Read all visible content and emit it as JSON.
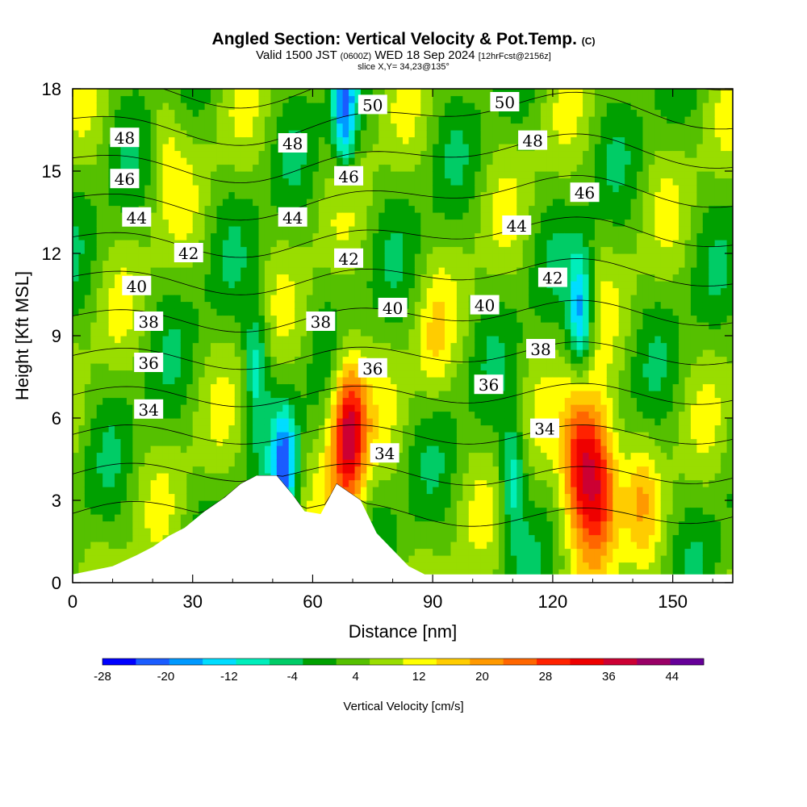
{
  "title": {
    "main": "Angled Section: Vertical Velocity & Pot.Temp.",
    "main_unit": "(C)",
    "valid_prefix": "Valid 1500 JST",
    "valid_utc": "(0600Z)",
    "valid_date": "WED 18 Sep 2024",
    "forecast": "[12hrFcst@2156z]",
    "slice": "slice X,Y= 34,23@135°"
  },
  "chart_data": {
    "type": "heatmap",
    "xlabel": "Distance [nm]",
    "ylabel": "Height [Kft MSL]",
    "xlim": [
      0,
      165
    ],
    "ylim": [
      0,
      18
    ],
    "x_ticks": [
      0,
      30,
      60,
      90,
      120,
      150
    ],
    "y_ticks": [
      0,
      3,
      6,
      9,
      12,
      15,
      18
    ],
    "colorbar": {
      "label": "Vertical Velocity [cm/s]",
      "ticks": [
        -28,
        -20,
        -12,
        -4,
        4,
        12,
        20,
        28,
        36,
        44
      ],
      "range": [
        -28,
        48
      ],
      "colors": [
        "#0000ff",
        "#1a5cff",
        "#0099ff",
        "#00ddff",
        "#00eebb",
        "#00cc66",
        "#00a000",
        "#55c000",
        "#99dd00",
        "#ffff00",
        "#ffcc00",
        "#ff9900",
        "#ff6600",
        "#ff2200",
        "#ee0000",
        "#cc0033",
        "#990066",
        "#660099"
      ]
    },
    "terrain_profile": [
      {
        "x": 0,
        "z": 0.3
      },
      {
        "x": 10,
        "z": 0.6
      },
      {
        "x": 16,
        "z": 1.0
      },
      {
        "x": 20,
        "z": 1.3
      },
      {
        "x": 24,
        "z": 1.7
      },
      {
        "x": 28,
        "z": 2.0
      },
      {
        "x": 33,
        "z": 2.6
      },
      {
        "x": 38,
        "z": 3.1
      },
      {
        "x": 42,
        "z": 3.6
      },
      {
        "x": 46,
        "z": 3.9
      },
      {
        "x": 51,
        "z": 3.9
      },
      {
        "x": 55,
        "z": 3.2
      },
      {
        "x": 58,
        "z": 2.6
      },
      {
        "x": 62,
        "z": 2.5
      },
      {
        "x": 66,
        "z": 3.6
      },
      {
        "x": 72,
        "z": 3.0
      },
      {
        "x": 76,
        "z": 1.8
      },
      {
        "x": 80,
        "z": 1.2
      },
      {
        "x": 84,
        "z": 0.6
      },
      {
        "x": 88,
        "z": 0.3
      },
      {
        "x": 165,
        "z": 0.3
      }
    ],
    "updrafts": [
      {
        "x": 69,
        "z": 5.5,
        "value": 40
      },
      {
        "x": 127,
        "z": 4.3,
        "value": 36
      },
      {
        "x": 132,
        "z": 3.5,
        "value": 34
      },
      {
        "x": 142,
        "z": 3.2,
        "value": 14
      },
      {
        "x": 23,
        "z": 16.0,
        "value": 12
      },
      {
        "x": 90,
        "z": 8.5,
        "value": 12
      }
    ],
    "downdrafts": [
      {
        "x": 53,
        "z": 4.2,
        "value": -22
      },
      {
        "x": 68,
        "z": 17.0,
        "value": -22
      },
      {
        "x": 127,
        "z": 9.8,
        "value": -22
      },
      {
        "x": 110,
        "z": 3.8,
        "value": -14
      },
      {
        "x": 46,
        "z": 8.0,
        "value": -14
      }
    ],
    "theta_contour_labels": [
      {
        "text": "48",
        "x": 13,
        "z": 16.2
      },
      {
        "text": "46",
        "x": 13,
        "z": 14.7
      },
      {
        "text": "44",
        "x": 16,
        "z": 13.3
      },
      {
        "text": "42",
        "x": 29,
        "z": 12.0
      },
      {
        "text": "40",
        "x": 16,
        "z": 10.8
      },
      {
        "text": "38",
        "x": 19,
        "z": 9.5
      },
      {
        "text": "36",
        "x": 19,
        "z": 8.0
      },
      {
        "text": "34",
        "x": 19,
        "z": 6.3
      },
      {
        "text": "48",
        "x": 55,
        "z": 16.0
      },
      {
        "text": "44",
        "x": 55,
        "z": 13.3
      },
      {
        "text": "38",
        "x": 62,
        "z": 9.5
      },
      {
        "text": "50",
        "x": 75,
        "z": 17.4
      },
      {
        "text": "46",
        "x": 69,
        "z": 14.8
      },
      {
        "text": "42",
        "x": 69,
        "z": 11.8
      },
      {
        "text": "40",
        "x": 80,
        "z": 10.0
      },
      {
        "text": "36",
        "x": 75,
        "z": 7.8
      },
      {
        "text": "34",
        "x": 78,
        "z": 4.7
      },
      {
        "text": "50",
        "x": 108,
        "z": 17.5
      },
      {
        "text": "48",
        "x": 115,
        "z": 16.1
      },
      {
        "text": "44",
        "x": 111,
        "z": 13.0
      },
      {
        "text": "40",
        "x": 103,
        "z": 10.1
      },
      {
        "text": "36",
        "x": 104,
        "z": 7.2
      },
      {
        "text": "46",
        "x": 128,
        "z": 14.2
      },
      {
        "text": "42",
        "x": 120,
        "z": 11.1
      },
      {
        "text": "38",
        "x": 117,
        "z": 8.5
      },
      {
        "text": "34",
        "x": 118,
        "z": 5.6
      }
    ]
  }
}
